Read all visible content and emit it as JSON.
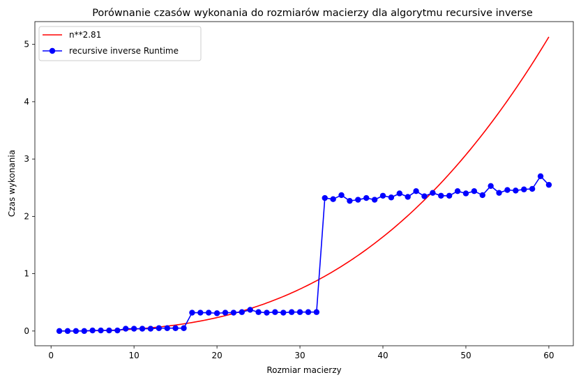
{
  "chart_data": {
    "type": "line",
    "title": "Porównanie czasów wykonania do rozmiarów macierzy dla algorytmu recursive inverse",
    "xlabel": "Rozmiar macierzy",
    "ylabel": "Czas wykonania",
    "xlim": [
      -1.95,
      62.95
    ],
    "ylim": [
      -0.257,
      5.397
    ],
    "xticks": [
      0,
      10,
      20,
      30,
      40,
      50,
      60
    ],
    "yticks": [
      0,
      1,
      2,
      3,
      4,
      5
    ],
    "grid": false,
    "legend_position": "upper-left",
    "series": [
      {
        "name": "n**2.81",
        "kind": "curve",
        "color": "#ff0000",
        "exponent": 2.81,
        "x_range": [
          1,
          60
        ],
        "y_at_max": 5.13
      },
      {
        "name": "recursive inverse Runtime",
        "kind": "line-markers",
        "color": "#0000ff",
        "x": [
          1,
          2,
          3,
          4,
          5,
          6,
          7,
          8,
          9,
          10,
          11,
          12,
          13,
          14,
          15,
          16,
          17,
          18,
          19,
          20,
          21,
          22,
          23,
          24,
          25,
          26,
          27,
          28,
          29,
          30,
          31,
          32,
          33,
          34,
          35,
          36,
          37,
          38,
          39,
          40,
          41,
          42,
          43,
          44,
          45,
          46,
          47,
          48,
          49,
          50,
          51,
          52,
          53,
          54,
          55,
          56,
          57,
          58,
          59,
          60
        ],
        "y": [
          0.0,
          0.0,
          0.0,
          0.0,
          0.01,
          0.01,
          0.01,
          0.01,
          0.04,
          0.04,
          0.04,
          0.04,
          0.05,
          0.05,
          0.05,
          0.05,
          0.32,
          0.32,
          0.32,
          0.31,
          0.32,
          0.32,
          0.33,
          0.37,
          0.33,
          0.32,
          0.33,
          0.32,
          0.33,
          0.33,
          0.33,
          0.33,
          2.32,
          2.3,
          2.37,
          2.27,
          2.29,
          2.32,
          2.29,
          2.36,
          2.33,
          2.4,
          2.34,
          2.44,
          2.35,
          2.41,
          2.36,
          2.36,
          2.44,
          2.4,
          2.44,
          2.37,
          2.53,
          2.41,
          2.46,
          2.45,
          2.47,
          2.48,
          2.7,
          2.55
        ]
      }
    ]
  }
}
